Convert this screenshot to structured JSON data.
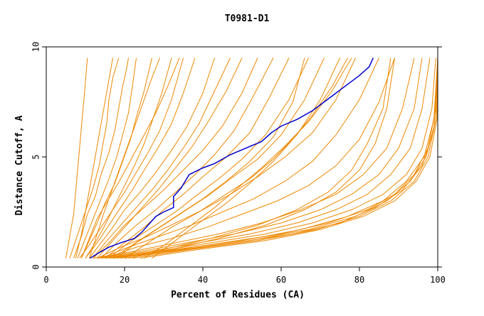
{
  "chart_data": {
    "type": "line",
    "title": "T0981-D1",
    "xlabel": "Percent of Residues (CA)",
    "ylabel": "Distance Cutoff, A",
    "xlim": [
      0,
      100
    ],
    "ylim": [
      0,
      10
    ],
    "x_ticks": [
      "0",
      "20",
      "40",
      "60",
      "80",
      "100"
    ],
    "y_ticks": [
      "0",
      "5",
      "10"
    ],
    "x_tick_values": [
      0,
      20,
      40,
      60,
      80,
      100
    ],
    "y_tick_values": [
      0,
      5,
      10
    ],
    "grid": false,
    "legend": "none",
    "colors": {
      "highlight": "#0000cc",
      "others": "#ee8800",
      "axis": "#000000"
    },
    "highlight_series": {
      "x": [
        11.2,
        13,
        16,
        19,
        22.5,
        24.5,
        26,
        28,
        30,
        32.5,
        32.5,
        34.5,
        36.5,
        40,
        43,
        47,
        51,
        55,
        57.5,
        60,
        64,
        68,
        71,
        74,
        77,
        80,
        82.5,
        83.5
      ],
      "y": [
        0.4,
        0.6,
        0.9,
        1.1,
        1.3,
        1.6,
        1.9,
        2.3,
        2.5,
        2.7,
        3.2,
        3.6,
        4.2,
        4.5,
        4.7,
        5.1,
        5.4,
        5.7,
        6.1,
        6.4,
        6.7,
        7.1,
        7.5,
        7.9,
        8.3,
        8.7,
        9.1,
        9.5
      ]
    },
    "series": [
      {
        "x": [
          6,
          7.5,
          9,
          10.5,
          12,
          13.5,
          14.5,
          15.5,
          16,
          17,
          18.5
        ],
        "y": [
          0.4,
          1.2,
          2,
          2.8,
          3.6,
          4.6,
          5.6,
          6.6,
          7.6,
          8.6,
          9.5
        ]
      },
      {
        "x": [
          7,
          9,
          10.5,
          12.5,
          14,
          16,
          17.5,
          18.5,
          19.5,
          20.5,
          21
        ],
        "y": [
          0.4,
          1.4,
          2.4,
          3.2,
          4.2,
          5.2,
          6.2,
          7.2,
          8.2,
          9,
          9.5
        ]
      },
      {
        "x": [
          8,
          10,
          12,
          14,
          16,
          18,
          19.5,
          21,
          22,
          23
        ],
        "y": [
          0.4,
          1.3,
          2.2,
          3.1,
          4,
          5,
          6,
          7,
          8.2,
          9.5
        ]
      },
      {
        "x": [
          9,
          11,
          13,
          15,
          17.5,
          19.5,
          21.5,
          23,
          25,
          27
        ],
        "y": [
          0.4,
          1.2,
          2,
          2.9,
          3.8,
          4.8,
          5.8,
          6.8,
          8,
          9.5
        ]
      },
      {
        "x": [
          10,
          12.5,
          15,
          17.5,
          20,
          22.5,
          25,
          27,
          29.5,
          32
        ],
        "y": [
          0.4,
          1.1,
          1.9,
          2.8,
          3.7,
          4.6,
          5.6,
          6.6,
          7.9,
          9.5
        ]
      },
      {
        "x": [
          8.5,
          11,
          14,
          17,
          20,
          23,
          26,
          29,
          32,
          35
        ],
        "y": [
          0.4,
          1,
          1.8,
          2.6,
          3.4,
          4.3,
          5.2,
          6.2,
          7.6,
          9.5
        ]
      },
      {
        "x": [
          10,
          13,
          16,
          19,
          22,
          25,
          28.5,
          32,
          35,
          38
        ],
        "y": [
          0.4,
          1.1,
          1.9,
          2.7,
          3.5,
          4.4,
          5.4,
          6.5,
          7.9,
          9.5
        ]
      },
      {
        "x": [
          11,
          14,
          17,
          20,
          24,
          28,
          32,
          36,
          40,
          43
        ],
        "y": [
          0.4,
          1.1,
          1.8,
          2.6,
          3.4,
          4.3,
          5.3,
          6.4,
          7.9,
          9.5
        ]
      },
      {
        "x": [
          12,
          15,
          19,
          23,
          27,
          31,
          35,
          39,
          43,
          47
        ],
        "y": [
          0.4,
          1.1,
          1.9,
          2.7,
          3.5,
          4.4,
          5.4,
          6.5,
          8,
          9.5
        ]
      },
      {
        "x": [
          13,
          17,
          21,
          25,
          29,
          33,
          37,
          41,
          46,
          50
        ],
        "y": [
          0.4,
          1.2,
          2,
          2.8,
          3.6,
          4.5,
          5.4,
          6.5,
          8,
          9.5
        ]
      },
      {
        "x": [
          12,
          16,
          20,
          25,
          30,
          35,
          40,
          45,
          50,
          54
        ],
        "y": [
          0.4,
          1.1,
          1.9,
          2.7,
          3.5,
          4.4,
          5.3,
          6.4,
          7.9,
          9.5
        ]
      },
      {
        "x": [
          14,
          18,
          23,
          28,
          33,
          38,
          43,
          48,
          53,
          58
        ],
        "y": [
          0.4,
          1.1,
          1.9,
          2.6,
          3.4,
          4.2,
          5.1,
          6.2,
          7.8,
          9.5
        ]
      },
      {
        "x": [
          15,
          20,
          25,
          30,
          35,
          40,
          46,
          52,
          57,
          62
        ],
        "y": [
          0.4,
          1.1,
          1.8,
          2.6,
          3.3,
          4.1,
          5,
          6.1,
          7.7,
          9.5
        ]
      },
      {
        "x": [
          16,
          21,
          27,
          33,
          38,
          44,
          50,
          56,
          62,
          67
        ],
        "y": [
          0.4,
          1.1,
          1.8,
          2.5,
          3.2,
          4,
          4.9,
          6,
          7.6,
          9.5
        ]
      },
      {
        "x": [
          18,
          23,
          29,
          35,
          41,
          47,
          54,
          60,
          66,
          71
        ],
        "y": [
          0.4,
          1.1,
          1.8,
          2.5,
          3.2,
          4,
          4.9,
          6,
          7.6,
          9.5
        ]
      },
      {
        "x": [
          20,
          26,
          32,
          39,
          45,
          52,
          58,
          64,
          70,
          75
        ],
        "y": [
          0.4,
          1.1,
          1.8,
          2.5,
          3.2,
          4,
          4.9,
          6,
          7.6,
          9.5
        ]
      },
      {
        "x": [
          13,
          19,
          26,
          33,
          40,
          47,
          54,
          61,
          68,
          74,
          79
        ],
        "y": [
          0.4,
          0.9,
          1.4,
          2,
          2.6,
          3.3,
          4.1,
          5,
          6.1,
          7.6,
          9.5
        ]
      },
      {
        "x": [
          14,
          21,
          29,
          37,
          45,
          53,
          61,
          68,
          74,
          80,
          85
        ],
        "y": [
          0.4,
          0.9,
          1.4,
          1.9,
          2.5,
          3.1,
          3.9,
          4.8,
          6,
          7.6,
          9.5
        ]
      },
      {
        "x": [
          15,
          23,
          32,
          41,
          50,
          59,
          67,
          74,
          80,
          85,
          89
        ],
        "y": [
          0.4,
          0.9,
          1.3,
          1.8,
          2.4,
          3,
          3.7,
          4.6,
          5.8,
          7.5,
          9.5
        ]
      },
      {
        "x": [
          12,
          22,
          33,
          44,
          55,
          65,
          74,
          81,
          87,
          91,
          94
        ],
        "y": [
          0.4,
          0.7,
          1.1,
          1.5,
          2,
          2.6,
          3.3,
          4.2,
          5.4,
          7.2,
          9.5
        ]
      },
      {
        "x": [
          13,
          24,
          36,
          48,
          60,
          70,
          78,
          85,
          90,
          94,
          96
        ],
        "y": [
          0.4,
          0.7,
          1.1,
          1.5,
          2,
          2.6,
          3.3,
          4.2,
          5.4,
          7.2,
          9.5
        ]
      },
      {
        "x": [
          14,
          26,
          39,
          52,
          64,
          74,
          82,
          88,
          93,
          96,
          98
        ],
        "y": [
          0.4,
          0.7,
          1.1,
          1.5,
          2,
          2.6,
          3.3,
          4.2,
          5.4,
          7.2,
          9.5
        ]
      },
      {
        "x": [
          15,
          28,
          42,
          56,
          68,
          78,
          86,
          92,
          96,
          98.5,
          99.5
        ],
        "y": [
          0.4,
          0.7,
          1.1,
          1.5,
          2,
          2.6,
          3.3,
          4.2,
          5.4,
          7.2,
          9.5
        ]
      },
      {
        "x": [
          16,
          30,
          45,
          60,
          72,
          82,
          89,
          94,
          97.5,
          99.5,
          100
        ],
        "y": [
          0.4,
          0.7,
          1.1,
          1.5,
          2,
          2.6,
          3.3,
          4.2,
          5.4,
          7.2,
          9.5
        ]
      },
      {
        "x": [
          17,
          32,
          48,
          63,
          75,
          84,
          91,
          96,
          99,
          100
        ],
        "y": [
          0.4,
          0.7,
          1.1,
          1.5,
          2,
          2.7,
          3.5,
          4.6,
          6.2,
          9.5
        ]
      },
      {
        "x": [
          18,
          33,
          50,
          65,
          77,
          86,
          92,
          96.5,
          99,
          100
        ],
        "y": [
          0.4,
          0.8,
          1.2,
          1.7,
          2.3,
          3,
          3.9,
          5,
          6.7,
          9.5
        ]
      },
      {
        "x": [
          20,
          35,
          52,
          67,
          79,
          87,
          93,
          97,
          99.5,
          100
        ],
        "y": [
          0.4,
          0.8,
          1.2,
          1.7,
          2.3,
          3,
          3.9,
          5,
          6.7,
          9.5
        ]
      },
      {
        "x": [
          22,
          37,
          54,
          69,
          80,
          88,
          94,
          97.5,
          99.5,
          100
        ],
        "y": [
          0.4,
          0.8,
          1.2,
          1.7,
          2.3,
          3,
          3.9,
          5,
          6.7,
          9.5
        ]
      },
      {
        "x": [
          24,
          39,
          56,
          70,
          81,
          89,
          94.5,
          98,
          99.8,
          100
        ],
        "y": [
          0.4,
          0.8,
          1.2,
          1.7,
          2.3,
          3,
          3.9,
          5,
          6.7,
          9.5
        ]
      },
      {
        "x": [
          19,
          30,
          42,
          54,
          64,
          72,
          78,
          82,
          86,
          88
        ],
        "y": [
          0.4,
          0.8,
          1.3,
          1.9,
          2.6,
          3.4,
          4.4,
          5.6,
          7.2,
          9.5
        ]
      },
      {
        "x": [
          21,
          32,
          44,
          56,
          66,
          74,
          80,
          84,
          87,
          89
        ],
        "y": [
          0.4,
          0.8,
          1.3,
          1.9,
          2.6,
          3.4,
          4.4,
          5.6,
          7.2,
          9.5
        ]
      },
      {
        "x": [
          5,
          6,
          7,
          7.5,
          8,
          8.5,
          9,
          9.5,
          10,
          10.5
        ],
        "y": [
          0.4,
          1.4,
          2.4,
          3.4,
          4.4,
          5.4,
          6.4,
          7.4,
          8.4,
          9.5
        ]
      },
      {
        "x": [
          7.5,
          9,
          10,
          11,
          12,
          13,
          14,
          15,
          16,
          17
        ],
        "y": [
          0.4,
          1.5,
          2.5,
          3.5,
          4.5,
          5.5,
          6.5,
          7.5,
          8.5,
          9.5
        ]
      },
      {
        "x": [
          11,
          13,
          15,
          17,
          19,
          21,
          23,
          25,
          27,
          29
        ],
        "y": [
          0.4,
          1.5,
          2.6,
          3.6,
          4.6,
          5.6,
          6.6,
          7.6,
          8.6,
          9.5
        ]
      },
      {
        "x": [
          25,
          31,
          37,
          43,
          49,
          55,
          61,
          67,
          73,
          78
        ],
        "y": [
          0.4,
          1.1,
          1.9,
          2.7,
          3.6,
          4.5,
          5.5,
          6.6,
          8,
          9.5
        ]
      },
      {
        "x": [
          27,
          33,
          39,
          46,
          52,
          58,
          63,
          68,
          73,
          77
        ],
        "y": [
          0.4,
          1.2,
          2,
          2.9,
          3.8,
          4.8,
          5.8,
          6.9,
          8.2,
          9.5
        ]
      },
      {
        "x": [
          9,
          11,
          13,
          16,
          19,
          22,
          25,
          28,
          31,
          34
        ],
        "y": [
          0.4,
          1.3,
          2.2,
          3.1,
          4,
          5,
          6,
          7,
          8.2,
          9.5
        ]
      },
      {
        "x": [
          17,
          22,
          28,
          34,
          40,
          46,
          52,
          58,
          63,
          66
        ],
        "y": [
          0.4,
          1,
          1.7,
          2.4,
          3.1,
          3.9,
          4.8,
          5.9,
          7.5,
          9.5
        ]
      }
    ]
  }
}
